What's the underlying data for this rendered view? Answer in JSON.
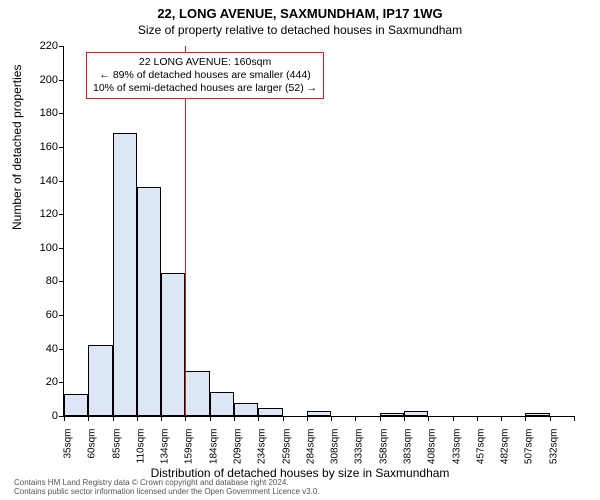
{
  "title": "22, LONG AVENUE, SAXMUNDHAM, IP17 1WG",
  "subtitle": "Size of property relative to detached houses in Saxmundham",
  "ylabel": "Number of detached properties",
  "xlabel": "Distribution of detached houses by size in Saxmundham",
  "chart": {
    "type": "histogram",
    "ylim": [
      0,
      220
    ],
    "ytick_step": 20,
    "background_color": "#ffffff",
    "bar_fill": "#dde6f4",
    "bar_border": "#000000",
    "marker_color": "#d92020",
    "marker_x": 160,
    "x_start": 35,
    "x_step": 25,
    "categories": [
      "35sqm",
      "60sqm",
      "85sqm",
      "110sqm",
      "134sqm",
      "159sqm",
      "184sqm",
      "209sqm",
      "234sqm",
      "259sqm",
      "284sqm",
      "308sqm",
      "333sqm",
      "358sqm",
      "383sqm",
      "408sqm",
      "433sqm",
      "457sqm",
      "482sqm",
      "507sqm",
      "532sqm"
    ],
    "values": [
      13,
      42,
      168,
      136,
      85,
      27,
      14,
      8,
      5,
      0,
      3,
      0,
      0,
      2,
      3,
      0,
      0,
      0,
      0,
      2,
      0
    ]
  },
  "annotation": {
    "line1": "22 LONG AVENUE: 160sqm",
    "line2": "← 89% of detached houses are smaller (444)",
    "line3": "10% of semi-detached houses are larger (52) →"
  },
  "footer": {
    "line1": "Contains HM Land Registry data © Crown copyright and database right 2024.",
    "line2": "Contains public sector information licensed under the Open Government Licence v3.0."
  },
  "fonts": {
    "title_size": 13,
    "subtitle_size": 12,
    "label_size": 12,
    "tick_size": 11,
    "annotation_size": 10.5,
    "footer_size": 8
  }
}
